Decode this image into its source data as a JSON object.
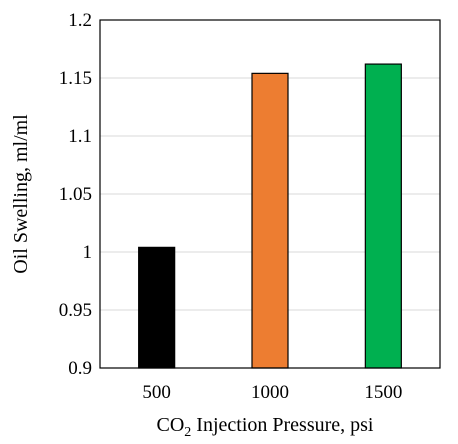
{
  "chart_data": {
    "type": "bar",
    "categories": [
      "500",
      "1000",
      "1500"
    ],
    "values": [
      1.004,
      1.154,
      1.162
    ],
    "colors": [
      "#000000",
      "#ed7d31",
      "#00b050"
    ],
    "xlabel_main": "CO",
    "xlabel_sub": "2",
    "xlabel_rest": " Injection Pressure, psi",
    "ylabel": "Oil Swelling, ml/ml",
    "ylim": [
      0.9,
      1.2
    ],
    "yticks": [
      0.9,
      0.95,
      1,
      1.05,
      1.1,
      1.15,
      1.2
    ],
    "ytick_labels": [
      "0.9",
      "0.95",
      "1",
      "1.05",
      "1.1",
      "1.15",
      "1.2"
    ],
    "grid": true,
    "legend": false
  }
}
